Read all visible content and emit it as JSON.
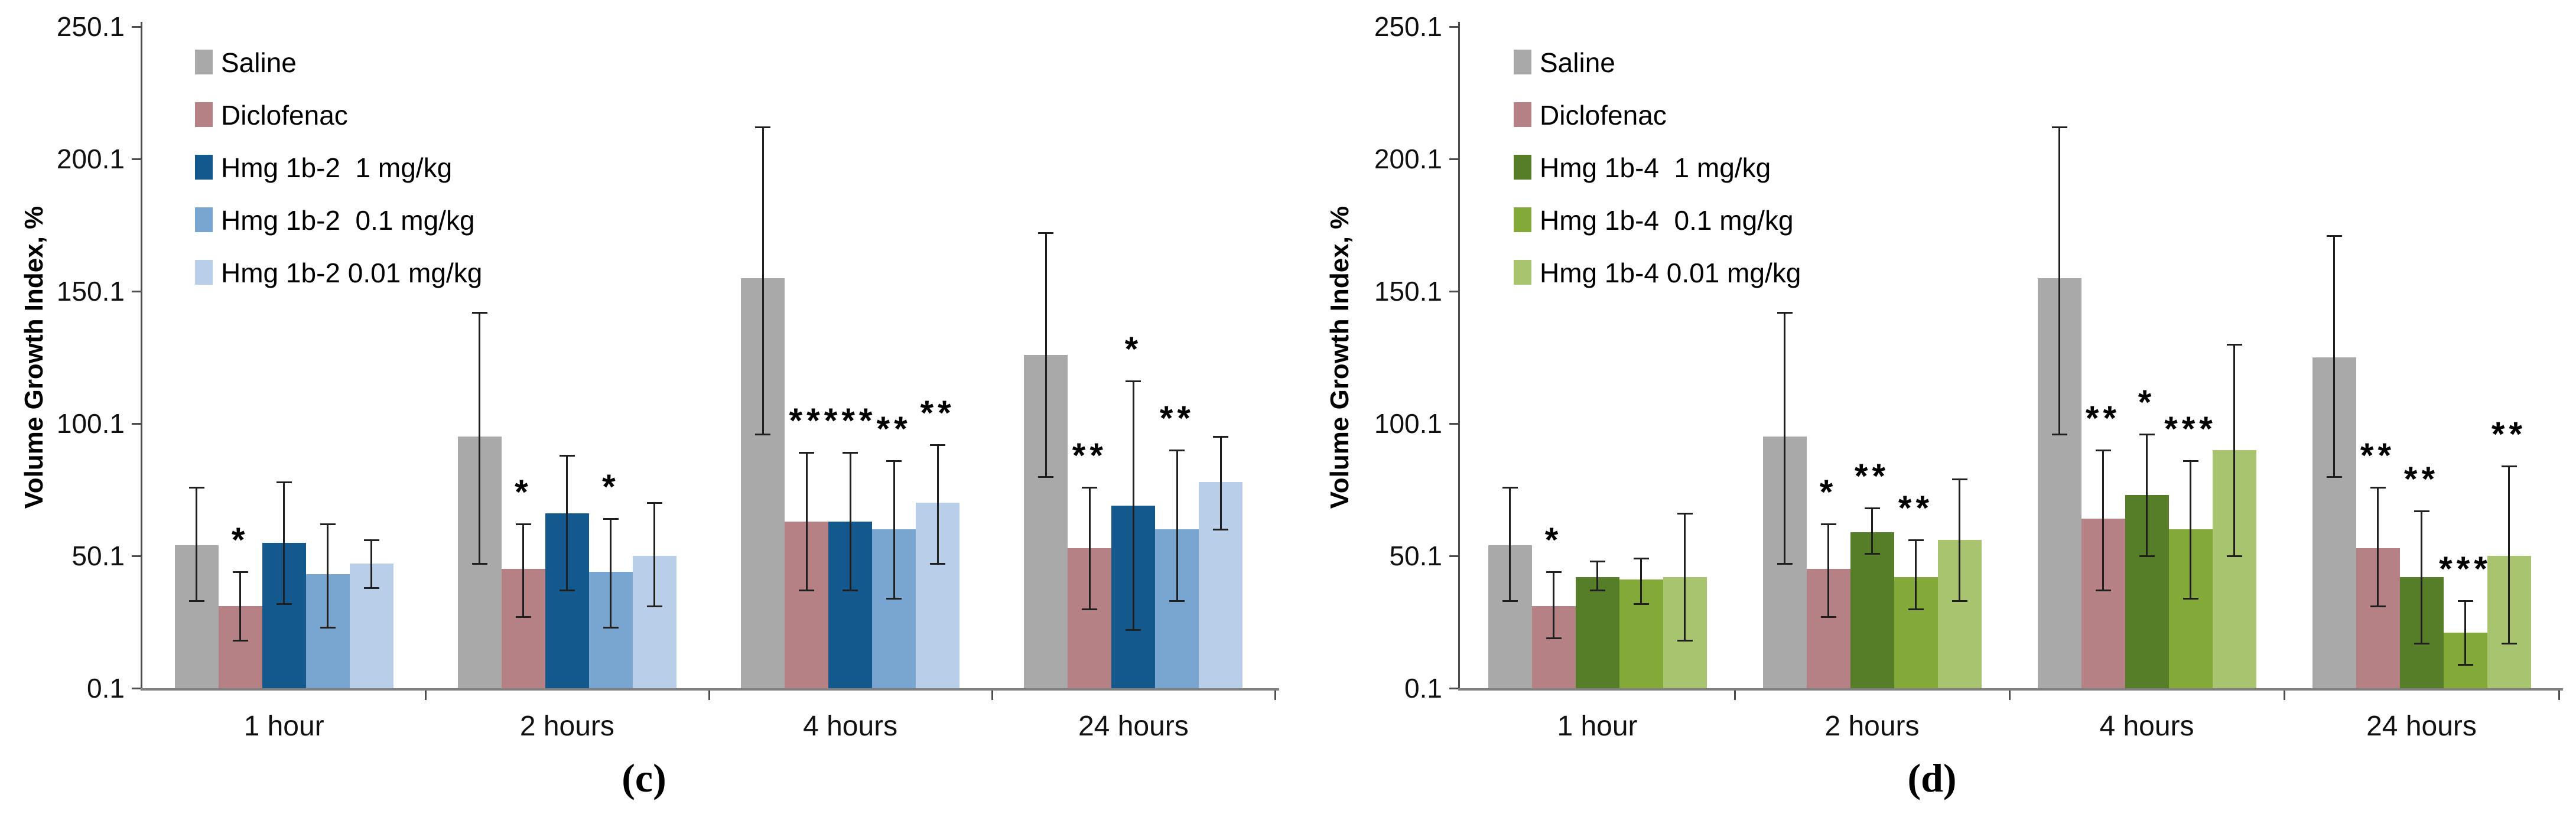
{
  "colors": {
    "axis": "#4d4d4d",
    "baseline": "#808080",
    "error_bar": "#1f1f1f",
    "text": "#000000"
  },
  "chart_data": [
    {
      "type": "bar",
      "panel_label": "(c)",
      "y_axis_title": "Volume Growth Index, %",
      "ylabel": "Volume Growth Index, %",
      "xlabel": "",
      "ylim": [
        0.1,
        250.1
      ],
      "grid": false,
      "legend_position": "upper-left",
      "y_tick_labels": [
        "250.1",
        "200.1",
        "150.1",
        "100.1",
        "50.1",
        "0.1"
      ],
      "y_tick_values": [
        250,
        200,
        150,
        100,
        50,
        0
      ],
      "categories": [
        "1 hour",
        "2 hours",
        "4 hours",
        "24 hours"
      ],
      "series": [
        {
          "name": "Saline",
          "color": "#a9a9a9",
          "values": [
            54,
            95,
            155,
            126
          ],
          "err_low": [
            33,
            47,
            96,
            80
          ],
          "err_high": [
            76,
            142,
            212,
            172
          ],
          "sig": [
            "",
            "",
            "",
            ""
          ]
        },
        {
          "name": "Diclofenac",
          "color": "#b68184",
          "values": [
            31,
            45,
            63,
            53
          ],
          "err_low": [
            18,
            27,
            37,
            30
          ],
          "err_high": [
            44,
            62,
            89,
            76
          ],
          "sig": [
            "*",
            "*",
            "**",
            "**"
          ]
        },
        {
          "name": "Hmg 1b-2  1 mg/kg",
          "color": "#14598e",
          "values": [
            55,
            66,
            63,
            69
          ],
          "err_low": [
            32,
            37,
            37,
            22
          ],
          "err_high": [
            78,
            88,
            89,
            116
          ],
          "sig": [
            "",
            "",
            "***",
            "*"
          ]
        },
        {
          "name": "Hmg 1b-2  0.1 mg/kg",
          "color": "#79a5d1",
          "values": [
            43,
            44,
            60,
            60
          ],
          "err_low": [
            23,
            23,
            34,
            33
          ],
          "err_high": [
            62,
            64,
            86,
            90
          ],
          "sig": [
            "",
            "*",
            "**",
            "**"
          ]
        },
        {
          "name": "Hmg 1b-2 0.01 mg/kg",
          "color": "#b9cfe9",
          "values": [
            47,
            50,
            70,
            78
          ],
          "err_low": [
            38,
            31,
            47,
            60
          ],
          "err_high": [
            56,
            70,
            92,
            95
          ],
          "sig": [
            "",
            "",
            "**",
            ""
          ]
        }
      ]
    },
    {
      "type": "bar",
      "panel_label": "(d)",
      "y_axis_title": "Volume Growth Index, %",
      "ylabel": "Volume Growth Index, %",
      "xlabel": "",
      "ylim": [
        0.1,
        250.1
      ],
      "grid": false,
      "legend_position": "upper-left",
      "y_tick_labels": [
        "250.1",
        "200.1",
        "150.1",
        "100.1",
        "50.1",
        "0.1"
      ],
      "y_tick_values": [
        250,
        200,
        150,
        100,
        50,
        0
      ],
      "categories": [
        "1 hour",
        "2 hours",
        "4 hours",
        "24 hours"
      ],
      "series": [
        {
          "name": "Saline",
          "color": "#a9a9a9",
          "values": [
            54,
            95,
            155,
            125
          ],
          "err_low": [
            33,
            47,
            96,
            80
          ],
          "err_high": [
            76,
            142,
            212,
            171
          ],
          "sig": [
            "",
            "",
            "",
            ""
          ]
        },
        {
          "name": "Diclofenac",
          "color": "#b68184",
          "values": [
            31,
            45,
            64,
            53
          ],
          "err_low": [
            19,
            27,
            37,
            31
          ],
          "err_high": [
            44,
            62,
            90,
            76
          ],
          "sig": [
            "*",
            "*",
            "**",
            "**"
          ]
        },
        {
          "name": "Hmg 1b-4  1 mg/kg",
          "color": "#567d27",
          "values": [
            42,
            59,
            73,
            42
          ],
          "err_low": [
            37,
            51,
            50,
            17
          ],
          "err_high": [
            48,
            68,
            96,
            67
          ],
          "sig": [
            "",
            "**",
            "*",
            "**"
          ]
        },
        {
          "name": "Hmg 1b-4  0.1 mg/kg",
          "color": "#83aa38",
          "values": [
            41,
            42,
            60,
            21
          ],
          "err_low": [
            32,
            30,
            34,
            9
          ],
          "err_high": [
            49,
            56,
            86,
            33
          ],
          "sig": [
            "",
            "**",
            "***",
            "***"
          ]
        },
        {
          "name": "Hmg 1b-4 0.01 mg/kg",
          "color": "#a8c46f",
          "values": [
            42,
            56,
            90,
            50
          ],
          "err_low": [
            18,
            33,
            50,
            17
          ],
          "err_high": [
            66,
            79,
            130,
            84
          ],
          "sig": [
            "",
            "",
            "",
            "**"
          ]
        }
      ]
    }
  ]
}
